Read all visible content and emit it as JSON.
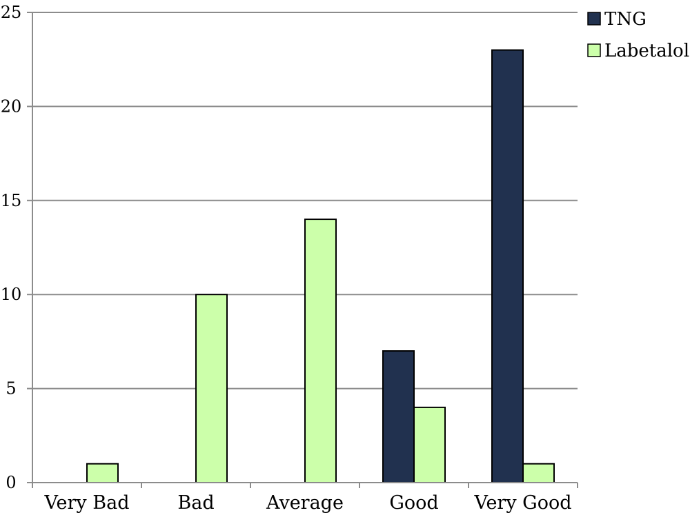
{
  "chart_data": {
    "type": "bar",
    "title": "",
    "xlabel": "",
    "ylabel": "",
    "categories": [
      "Very Bad",
      "Bad",
      "Average",
      "Good",
      "Very Good"
    ],
    "series": [
      {
        "name": "TNG",
        "color": "#21314f",
        "values": [
          0,
          0,
          0,
          7,
          23
        ]
      },
      {
        "name": "Labetalol",
        "color": "#ccffaa",
        "values": [
          1,
          10,
          14,
          4,
          1
        ]
      }
    ],
    "ylim": [
      0,
      25
    ],
    "yticks": [
      "0",
      "5",
      "10",
      "15",
      "20",
      "25"
    ],
    "grid": "horizontal",
    "legend_position": "right"
  }
}
